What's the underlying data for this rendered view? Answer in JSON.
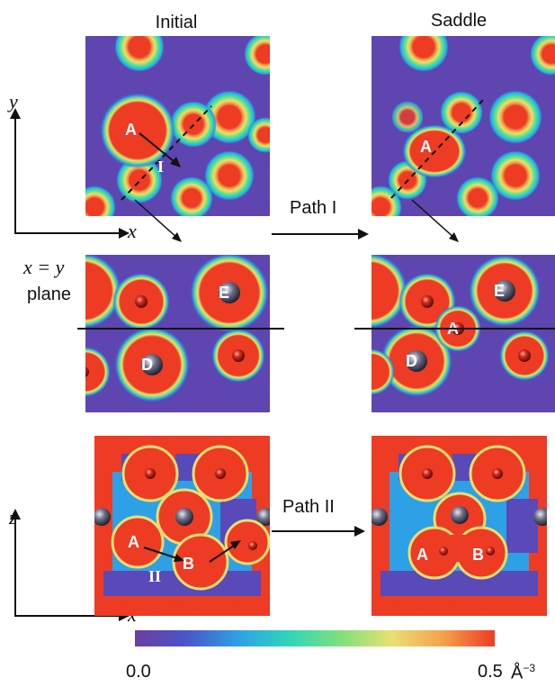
{
  "titles": {
    "initial": "Initial",
    "saddle": "Saddle"
  },
  "labels": {
    "xy_plane_math": "x = y",
    "xy_plane_word": "plane",
    "path_one": "Path I",
    "path_two": "Path II",
    "axis_y": "y",
    "axis_x_top": "x",
    "axis_z": "z",
    "axis_x_bottom": "x",
    "arrow_one": "I",
    "arrow_two": "II"
  },
  "atoms": {
    "a": "A",
    "b": "B",
    "d": "D",
    "e": "E"
  },
  "colorbar": {
    "min_label": "0.0",
    "max_label": "0.5",
    "unit_label": "Å",
    "unit_exp": "−3",
    "colors": [
      "#6b3fa0",
      "#4a55c8",
      "#2ea0e6",
      "#2fd6b8",
      "#7fe07c",
      "#e8e070",
      "#f2a24a",
      "#ee3b24"
    ]
  }
}
